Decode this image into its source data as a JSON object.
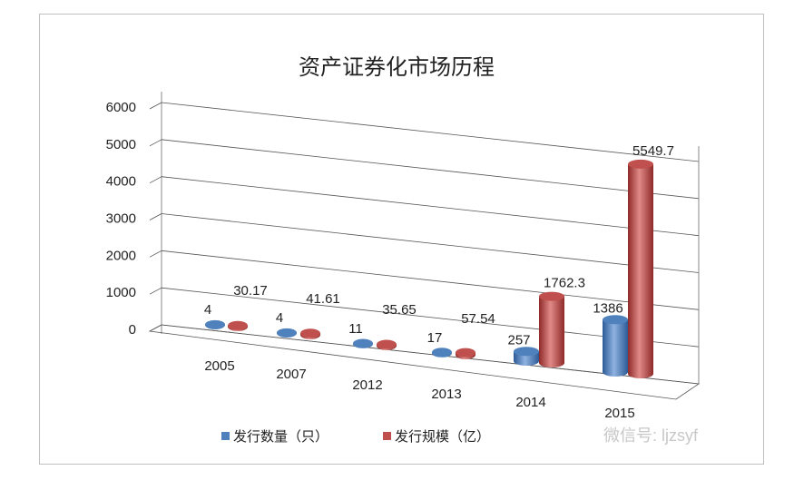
{
  "chart_data": {
    "type": "bar",
    "title": "资产证券化市场历程",
    "categories": [
      "2005",
      "2007",
      "2012",
      "2013",
      "2014",
      "2015"
    ],
    "series": [
      {
        "name": "发行数量（只）",
        "color": "#4f81bd",
        "values": [
          4,
          4,
          11,
          17,
          257,
          1386
        ]
      },
      {
        "name": "发行规模（亿）",
        "color": "#c0504d",
        "values": [
          30.17,
          41.61,
          35.65,
          57.54,
          1762.3,
          5549.7
        ]
      }
    ],
    "data_labels": [
      [
        "4",
        "4",
        "11",
        "17",
        "257",
        "1386"
      ],
      [
        "30.17",
        "41.61",
        "35.65",
        "57.54",
        "1762.3",
        "5549.7"
      ]
    ],
    "yticks": [
      "0",
      "1000",
      "2000",
      "3000",
      "4000",
      "5000",
      "6000"
    ],
    "ylim": [
      0,
      6000
    ],
    "grid": true,
    "legend_position": "bottom",
    "style": "3d-cylinder"
  },
  "watermark": "微信号: ljzsyf"
}
